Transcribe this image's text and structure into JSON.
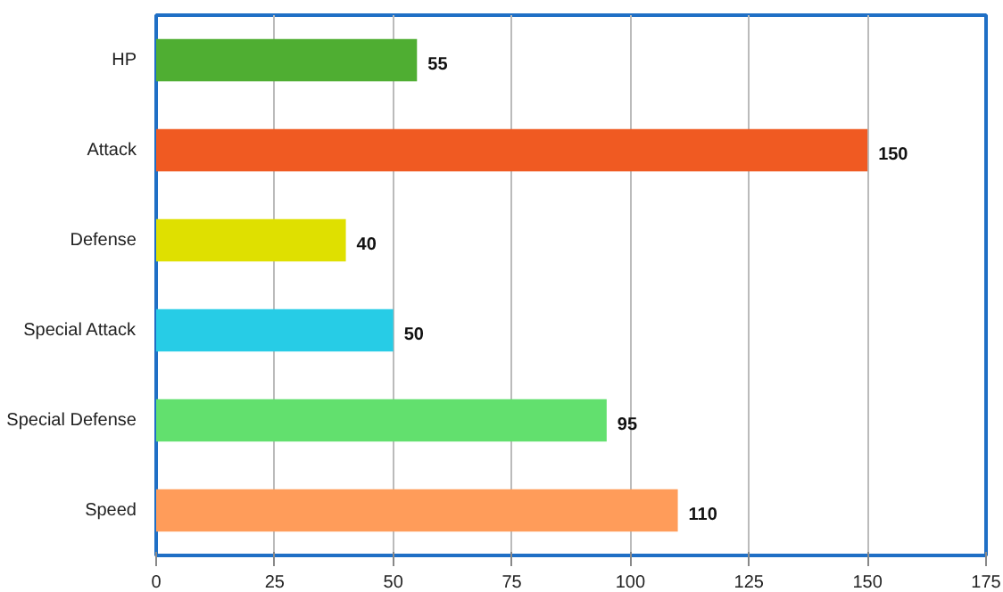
{
  "chart_data": {
    "type": "bar",
    "orientation": "horizontal",
    "categories": [
      "HP",
      "Attack",
      "Defense",
      "Special Attack",
      "Special Defense",
      "Speed"
    ],
    "values": [
      55,
      150,
      40,
      50,
      95,
      110
    ],
    "colors": [
      "#4fae32",
      "#f05a22",
      "#dfe000",
      "#27cce6",
      "#62e06e",
      "#ff9c5a"
    ],
    "xlim": [
      0,
      175
    ],
    "xticks": [
      0,
      25,
      50,
      75,
      100,
      125,
      150,
      175
    ],
    "grid": "x",
    "data_labels": true
  }
}
